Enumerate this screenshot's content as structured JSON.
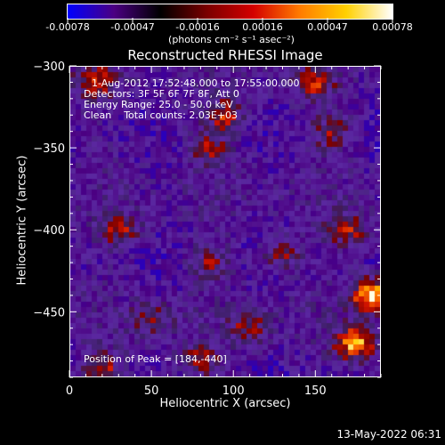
{
  "colorbar": {
    "ticks": [
      "-0.00078",
      "-0.00047",
      "-0.00016",
      "0.00016",
      "0.00047",
      "0.00078"
    ],
    "unit_label": "(photons cm⁻² s⁻¹ asec⁻²)",
    "colors": [
      "#0000ff",
      "#4b0082",
      "#000000",
      "#7a0000",
      "#d40000",
      "#ff7b00",
      "#ffd000",
      "#ffffff"
    ]
  },
  "title": "Reconstructed RHESSI Image",
  "annotation": {
    "line1": "1-Aug-2012 17:52:48.000 to 17:55:00.000",
    "line2": "Detectors: 3F 5F 6F 7F 8F, Att 0",
    "line3": "Energy Range: 25.0 - 50.0 keV",
    "line4": "Clean    Total counts: 2.03E+03",
    "peak": "Position of Peak = [184,-440]"
  },
  "footer": "13-May-2022 06:31",
  "chart_data": {
    "type": "heatmap",
    "title": "Reconstructed RHESSI Image",
    "xlabel": "Heliocentric X (arcsec)",
    "ylabel": "Heliocentric Y (arcsec)",
    "xlim": [
      0,
      190
    ],
    "ylim": [
      -490,
      -300
    ],
    "x_ticks": [
      0,
      50,
      100,
      150
    ],
    "y_ticks": [
      -300,
      -350,
      -400,
      -450
    ],
    "x_tick_labels": [
      "0",
      "50",
      "100",
      "150"
    ],
    "y_tick_labels": [
      "−300",
      "−350",
      "−400",
      "−450"
    ],
    "colorbar_range": [
      -0.00078,
      0.00078
    ],
    "peak": [
      184,
      -440
    ],
    "hotspots": [
      {
        "x": 15,
        "y": -310,
        "level": 0.55
      },
      {
        "x": 95,
        "y": -330,
        "level": 0.55
      },
      {
        "x": 150,
        "y": -310,
        "level": 0.5
      },
      {
        "x": 160,
        "y": -340,
        "level": 0.45
      },
      {
        "x": 85,
        "y": -350,
        "level": 0.45
      },
      {
        "x": 170,
        "y": -400,
        "level": 0.55
      },
      {
        "x": 30,
        "y": -400,
        "level": 0.5
      },
      {
        "x": 130,
        "y": -415,
        "level": 0.45
      },
      {
        "x": 85,
        "y": -420,
        "level": 0.4
      },
      {
        "x": 185,
        "y": -440,
        "level": 1.0
      },
      {
        "x": 175,
        "y": -470,
        "level": 0.85
      },
      {
        "x": 50,
        "y": -455,
        "level": 0.4
      },
      {
        "x": 110,
        "y": -460,
        "level": 0.45
      },
      {
        "x": 20,
        "y": -485,
        "level": 0.5
      },
      {
        "x": 80,
        "y": -480,
        "level": 0.45
      }
    ]
  }
}
